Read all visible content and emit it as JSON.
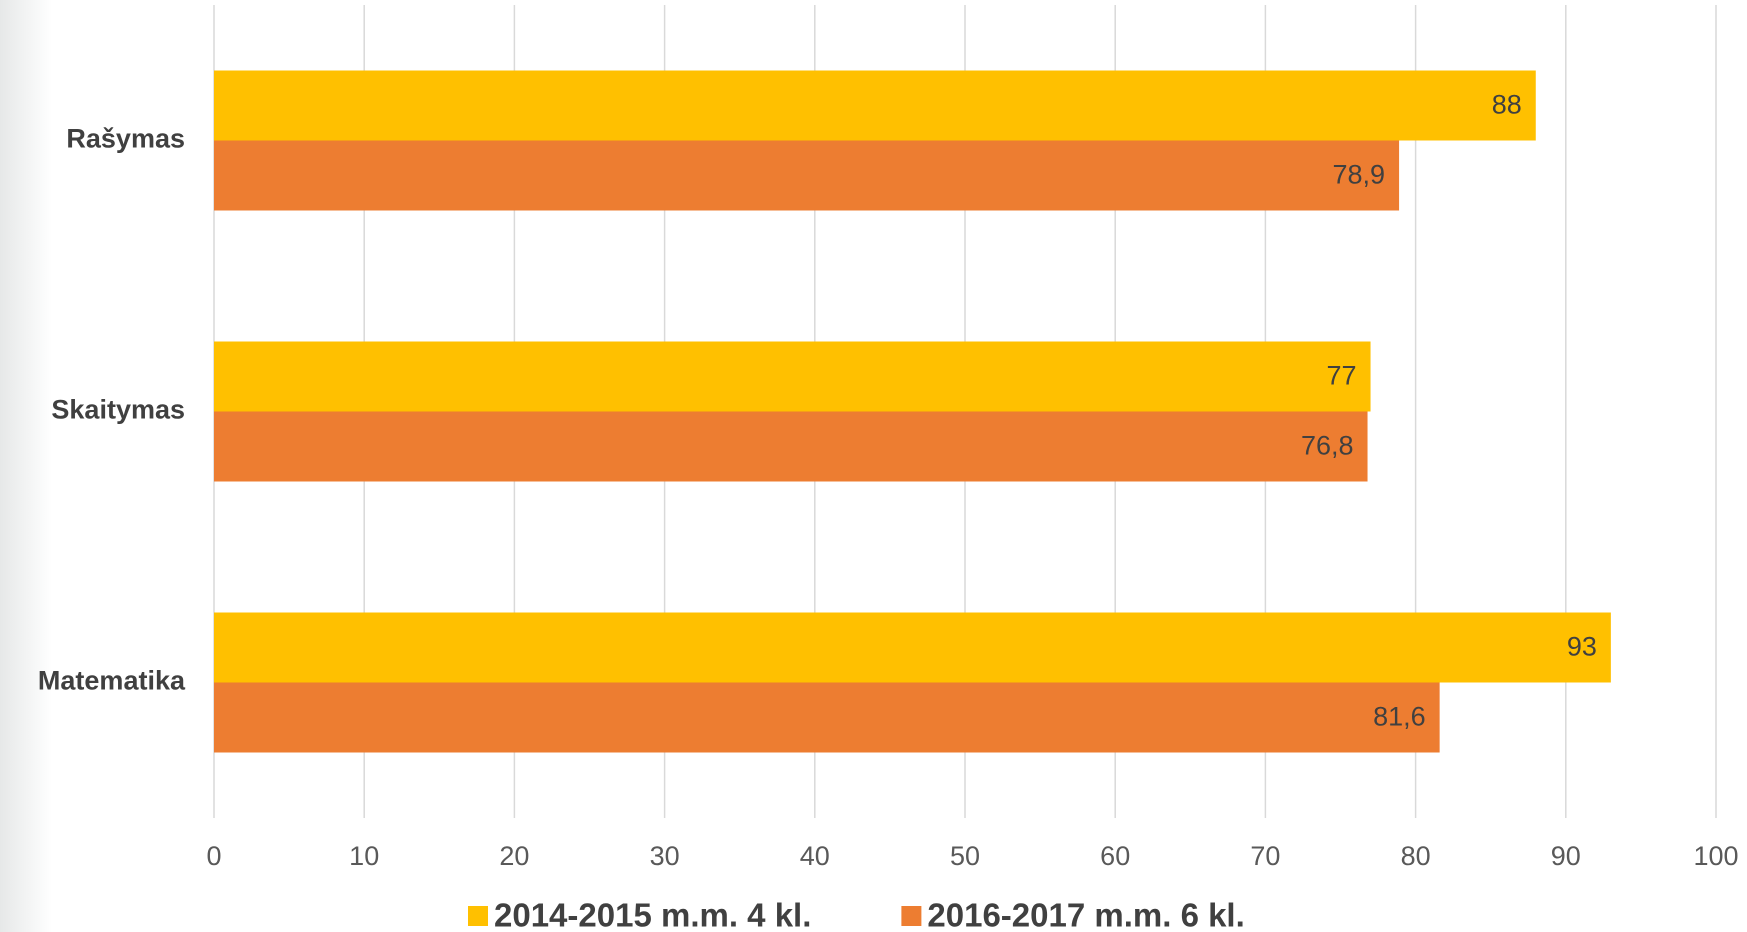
{
  "chart_data": {
    "type": "hbar",
    "categories": [
      "Rašymas",
      "Skaitymas",
      "Matematika"
    ],
    "series": [
      {
        "name": "2014-2015 m.m. 4 kl.",
        "color": "#ffc000",
        "values": [
          88,
          77,
          93
        ]
      },
      {
        "name": "2016-2017 m.m. 6 kl.",
        "color": "#ed7d31",
        "values": [
          78.9,
          76.8,
          81.6
        ],
        "value_labels": [
          "78,9",
          "76,8",
          "81,6"
        ]
      }
    ],
    "xlim": [
      0,
      100
    ],
    "xticks": [
      0,
      10,
      20,
      30,
      40,
      50,
      60,
      70,
      80,
      90,
      100
    ],
    "grid": true,
    "legend": "bottom"
  }
}
